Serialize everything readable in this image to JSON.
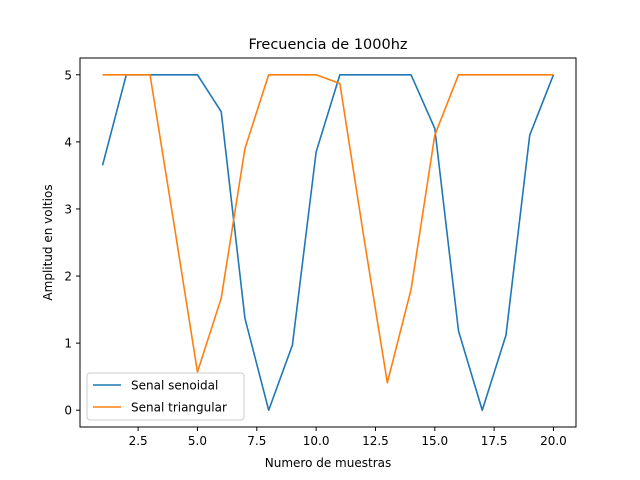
{
  "chart_data": {
    "type": "line",
    "title": "Frecuencia de 1000hz",
    "xlabel": "Numero de muestras",
    "ylabel": "Amplitud en voltios",
    "xlim": [
      0.05,
      20.95
    ],
    "ylim": [
      -0.25,
      5.25
    ],
    "xticks": [
      2.5,
      5.0,
      7.5,
      10.0,
      12.5,
      15.0,
      17.5,
      20.0
    ],
    "xtick_labels": [
      "2.5",
      "5.0",
      "7.5",
      "10.0",
      "12.5",
      "15.0",
      "17.5",
      "20.0"
    ],
    "yticks": [
      0,
      1,
      2,
      3,
      4,
      5
    ],
    "ytick_labels": [
      "0",
      "1",
      "2",
      "3",
      "4",
      "5"
    ],
    "grid": false,
    "legend_position": "lower-left",
    "x": [
      1,
      2,
      3,
      4,
      5,
      6,
      7,
      8,
      9,
      10,
      11,
      12,
      13,
      14,
      15,
      16,
      17,
      18,
      19,
      20
    ],
    "series": [
      {
        "name": "Senal senoidal",
        "color": "#1f77b4",
        "values": [
          3.65,
          5,
          5,
          5,
          5,
          4.45,
          1.37,
          0,
          0.97,
          3.85,
          5,
          5,
          5,
          5,
          4.2,
          1.18,
          0,
          1.12,
          4.1,
          5
        ]
      },
      {
        "name": "Senal triangular",
        "color": "#ff7f0e",
        "values": [
          5,
          5,
          5,
          2.8,
          0.57,
          1.67,
          3.9,
          5,
          5,
          5,
          4.87,
          2.6,
          0.41,
          1.8,
          4.1,
          5,
          5,
          5,
          5,
          5
        ]
      }
    ]
  }
}
